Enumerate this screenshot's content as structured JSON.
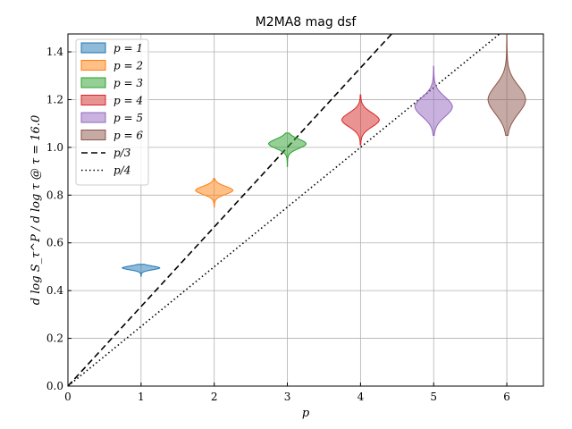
{
  "chart_data": {
    "type": "violin",
    "title": "M2MA8 mag dsf",
    "xlabel": "p",
    "ylabel": "d log S_τ^P / d log τ @ τ = 16.0",
    "xlim": [
      0,
      6.5
    ],
    "ylim": [
      0,
      1.475
    ],
    "xticks": [
      "0",
      "1",
      "2",
      "3",
      "4",
      "5",
      "6"
    ],
    "yticks": [
      "0.0",
      "0.2",
      "0.4",
      "0.6",
      "0.8",
      "1.0",
      "1.2",
      "1.4"
    ],
    "grid": true,
    "legend_position": "upper-left",
    "series": [
      {
        "name": "p = 1",
        "x": 1,
        "center": 0.495,
        "min": 0.46,
        "max": 0.51,
        "color": "#1f77b4"
      },
      {
        "name": "p = 2",
        "x": 2,
        "center": 0.82,
        "min": 0.75,
        "max": 0.87,
        "color": "#ff7f0e"
      },
      {
        "name": "p = 3",
        "x": 3,
        "center": 1.015,
        "min": 0.92,
        "max": 1.06,
        "color": "#2ca02c"
      },
      {
        "name": "p = 4",
        "x": 4,
        "center": 1.115,
        "min": 1.01,
        "max": 1.22,
        "color": "#d62728"
      },
      {
        "name": "p = 5",
        "x": 5,
        "center": 1.17,
        "min": 1.05,
        "max": 1.34,
        "color": "#9467bd"
      },
      {
        "name": "p = 6",
        "x": 6,
        "center": 1.2,
        "min": 1.05,
        "max": 1.47,
        "color": "#8c564b"
      }
    ],
    "reference_lines": [
      {
        "name": "p/3",
        "slope": 0.3333,
        "style": "dashed"
      },
      {
        "name": "p/4",
        "slope": 0.25,
        "style": "dotted"
      }
    ]
  }
}
